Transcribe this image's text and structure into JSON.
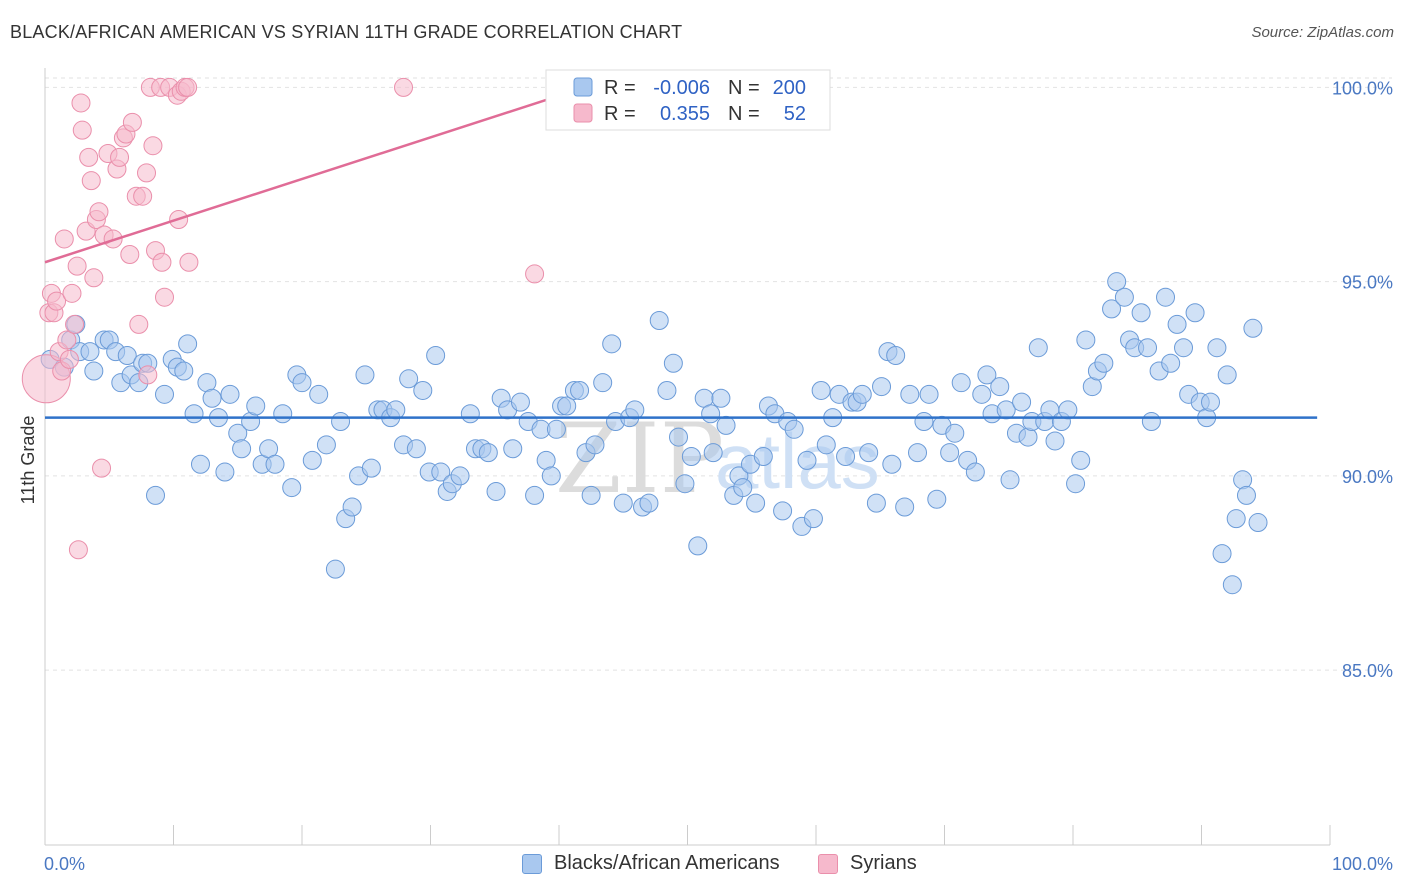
{
  "header": {
    "title": "BLACK/AFRICAN AMERICAN VS SYRIAN 11TH GRADE CORRELATION CHART",
    "source": "Source: ZipAtlas.com"
  },
  "watermark": {
    "zip": "ZIP",
    "atlas": "atlas"
  },
  "legend_box": {
    "rows": [
      {
        "r_label": "R =",
        "r_value": "-0.006",
        "n_label": "N =",
        "n_value": "200"
      },
      {
        "r_label": "R =",
        "r_value": "0.355",
        "n_label": "N =",
        "n_value": "52"
      }
    ]
  },
  "bottom_legend": {
    "items": [
      {
        "label": "Blacks/African Americans"
      },
      {
        "label": "Syrians"
      }
    ]
  },
  "colors": {
    "blue_fill": "#a9c8ef",
    "blue_stroke": "#6b9bd8",
    "blue_line": "#2f72c9",
    "pink_fill": "#f6b9cc",
    "pink_stroke": "#ea8fab",
    "pink_line": "#e06c96",
    "value_blue": "#2f62c4"
  },
  "chart_data": {
    "type": "scatter",
    "title": "BLACK/AFRICAN AMERICAN VS SYRIAN 11TH GRADE CORRELATION CHART",
    "xlabel": "",
    "ylabel": "11th Grade",
    "xlim": [
      0,
      100
    ],
    "ylim": [
      80.5,
      100.5
    ],
    "x_tick_labels": [
      "0.0%",
      "100.0%"
    ],
    "y_ticks": [
      85,
      90,
      95,
      100
    ],
    "y_tick_labels": [
      "85.0%",
      "90.0%",
      "95.0%",
      "100.0%"
    ],
    "grid": true,
    "legend": "top-center",
    "series": [
      {
        "name": "Blacks/African Americans",
        "r": -0.006,
        "n": 200,
        "trend": [
          [
            0,
            91.5
          ],
          [
            99,
            91.5
          ]
        ],
        "points": [
          [
            0.4,
            93.0
          ],
          [
            1.5,
            92.8
          ],
          [
            2.0,
            93.5
          ],
          [
            2.4,
            93.9
          ],
          [
            2.7,
            93.2
          ],
          [
            3.5,
            93.2
          ],
          [
            3.8,
            92.7
          ],
          [
            4.6,
            93.5
          ],
          [
            5.0,
            93.5
          ],
          [
            5.5,
            93.2
          ],
          [
            5.9,
            92.4
          ],
          [
            6.4,
            93.1
          ],
          [
            6.7,
            92.6
          ],
          [
            7.3,
            92.4
          ],
          [
            7.6,
            92.9
          ],
          [
            8.0,
            92.9
          ],
          [
            8.6,
            89.5
          ],
          [
            9.3,
            92.1
          ],
          [
            9.9,
            93.0
          ],
          [
            10.3,
            92.8
          ],
          [
            10.8,
            92.7
          ],
          [
            11.1,
            93.4
          ],
          [
            11.6,
            91.6
          ],
          [
            12.1,
            90.3
          ],
          [
            12.6,
            92.4
          ],
          [
            13.0,
            92.0
          ],
          [
            13.5,
            91.5
          ],
          [
            14.0,
            90.1
          ],
          [
            14.4,
            92.1
          ],
          [
            15.0,
            91.1
          ],
          [
            15.3,
            90.7
          ],
          [
            16.0,
            91.4
          ],
          [
            16.4,
            91.8
          ],
          [
            16.9,
            90.3
          ],
          [
            17.4,
            90.7
          ],
          [
            17.9,
            90.3
          ],
          [
            18.5,
            91.6
          ],
          [
            19.2,
            89.7
          ],
          [
            19.6,
            92.6
          ],
          [
            20.0,
            92.4
          ],
          [
            20.8,
            90.4
          ],
          [
            21.3,
            92.1
          ],
          [
            21.9,
            90.8
          ],
          [
            22.6,
            87.6
          ],
          [
            23.0,
            91.4
          ],
          [
            23.4,
            88.9
          ],
          [
            23.9,
            89.2
          ],
          [
            24.4,
            90.0
          ],
          [
            24.9,
            92.6
          ],
          [
            25.4,
            90.2
          ],
          [
            25.9,
            91.7
          ],
          [
            26.3,
            91.7
          ],
          [
            26.9,
            91.5
          ],
          [
            27.3,
            91.7
          ],
          [
            27.9,
            90.8
          ],
          [
            28.3,
            92.5
          ],
          [
            28.9,
            90.7
          ],
          [
            29.4,
            92.2
          ],
          [
            29.9,
            90.1
          ],
          [
            30.4,
            93.1
          ],
          [
            30.8,
            90.1
          ],
          [
            31.3,
            89.6
          ],
          [
            31.7,
            89.8
          ],
          [
            32.3,
            90.0
          ],
          [
            33.1,
            91.6
          ],
          [
            33.5,
            90.7
          ],
          [
            34.0,
            90.7
          ],
          [
            34.5,
            90.6
          ],
          [
            35.1,
            89.6
          ],
          [
            35.5,
            92.0
          ],
          [
            36.0,
            91.7
          ],
          [
            36.4,
            90.7
          ],
          [
            37.0,
            91.9
          ],
          [
            37.6,
            91.4
          ],
          [
            38.1,
            89.5
          ],
          [
            38.6,
            91.2
          ],
          [
            39.0,
            90.4
          ],
          [
            39.4,
            90.0
          ],
          [
            39.8,
            91.2
          ],
          [
            40.2,
            91.8
          ],
          [
            40.6,
            91.8
          ],
          [
            41.2,
            92.2
          ],
          [
            41.6,
            92.2
          ],
          [
            42.1,
            90.6
          ],
          [
            42.5,
            89.5
          ],
          [
            42.8,
            90.8
          ],
          [
            43.4,
            92.4
          ],
          [
            44.1,
            93.4
          ],
          [
            44.4,
            91.4
          ],
          [
            45.0,
            89.3
          ],
          [
            45.5,
            91.5
          ],
          [
            45.9,
            91.7
          ],
          [
            46.5,
            89.2
          ],
          [
            47.0,
            89.3
          ],
          [
            47.8,
            94.0
          ],
          [
            48.4,
            92.2
          ],
          [
            48.9,
            92.9
          ],
          [
            49.3,
            91.0
          ],
          [
            49.8,
            89.8
          ],
          [
            50.3,
            90.5
          ],
          [
            50.8,
            88.2
          ],
          [
            51.3,
            92.0
          ],
          [
            51.8,
            91.6
          ],
          [
            52.0,
            90.6
          ],
          [
            52.6,
            92.0
          ],
          [
            53.0,
            91.3
          ],
          [
            53.6,
            89.5
          ],
          [
            54.0,
            90.0
          ],
          [
            54.3,
            89.7
          ],
          [
            54.9,
            90.3
          ],
          [
            55.3,
            89.3
          ],
          [
            55.9,
            90.5
          ],
          [
            56.3,
            91.8
          ],
          [
            56.8,
            91.6
          ],
          [
            57.4,
            89.1
          ],
          [
            57.8,
            91.4
          ],
          [
            58.3,
            91.2
          ],
          [
            58.9,
            88.7
          ],
          [
            59.3,
            90.4
          ],
          [
            59.8,
            88.9
          ],
          [
            60.4,
            92.2
          ],
          [
            60.8,
            90.8
          ],
          [
            61.3,
            91.5
          ],
          [
            61.8,
            92.1
          ],
          [
            62.3,
            90.5
          ],
          [
            62.8,
            91.9
          ],
          [
            63.2,
            91.9
          ],
          [
            63.6,
            92.1
          ],
          [
            64.1,
            90.6
          ],
          [
            64.7,
            89.3
          ],
          [
            65.1,
            92.3
          ],
          [
            65.6,
            93.2
          ],
          [
            65.9,
            90.3
          ],
          [
            66.2,
            93.1
          ],
          [
            66.9,
            89.2
          ],
          [
            67.3,
            92.1
          ],
          [
            67.9,
            90.6
          ],
          [
            68.4,
            91.4
          ],
          [
            68.8,
            92.1
          ],
          [
            69.4,
            89.4
          ],
          [
            69.8,
            91.3
          ],
          [
            70.4,
            90.6
          ],
          [
            70.8,
            91.1
          ],
          [
            71.3,
            92.4
          ],
          [
            71.8,
            90.4
          ],
          [
            72.4,
            90.1
          ],
          [
            72.9,
            92.1
          ],
          [
            73.3,
            92.6
          ],
          [
            73.7,
            91.6
          ],
          [
            74.3,
            92.3
          ],
          [
            74.8,
            91.7
          ],
          [
            75.1,
            89.9
          ],
          [
            75.6,
            91.1
          ],
          [
            76.0,
            91.9
          ],
          [
            76.5,
            91.0
          ],
          [
            76.8,
            91.4
          ],
          [
            77.3,
            93.3
          ],
          [
            77.8,
            91.4
          ],
          [
            78.2,
            91.7
          ],
          [
            78.6,
            90.9
          ],
          [
            79.1,
            91.4
          ],
          [
            79.6,
            91.7
          ],
          [
            80.2,
            89.8
          ],
          [
            80.6,
            90.4
          ],
          [
            81.0,
            93.5
          ],
          [
            81.5,
            92.3
          ],
          [
            81.9,
            92.7
          ],
          [
            82.4,
            92.9
          ],
          [
            83.0,
            94.3
          ],
          [
            83.4,
            95.0
          ],
          [
            84.0,
            94.6
          ],
          [
            84.4,
            93.5
          ],
          [
            84.8,
            93.3
          ],
          [
            85.3,
            94.2
          ],
          [
            85.8,
            93.3
          ],
          [
            86.1,
            91.4
          ],
          [
            86.7,
            92.7
          ],
          [
            87.2,
            94.6
          ],
          [
            87.6,
            92.9
          ],
          [
            88.1,
            93.9
          ],
          [
            88.6,
            93.3
          ],
          [
            89.0,
            92.1
          ],
          [
            89.5,
            94.2
          ],
          [
            89.9,
            91.9
          ],
          [
            90.4,
            91.5
          ],
          [
            90.7,
            91.9
          ],
          [
            91.2,
            93.3
          ],
          [
            91.6,
            88.0
          ],
          [
            92.0,
            92.6
          ],
          [
            92.4,
            87.2
          ],
          [
            92.7,
            88.9
          ],
          [
            93.2,
            89.9
          ],
          [
            93.5,
            89.5
          ],
          [
            94.0,
            93.8
          ],
          [
            94.4,
            88.8
          ]
        ]
      },
      {
        "name": "Syrians",
        "r": 0.355,
        "n": 52,
        "trend": [
          [
            0,
            95.5
          ],
          [
            42,
            100.0
          ]
        ],
        "points": [
          [
            0.1,
            92.5,
            "big"
          ],
          [
            0.3,
            94.2
          ],
          [
            0.5,
            94.7
          ],
          [
            0.7,
            94.2
          ],
          [
            0.9,
            94.5
          ],
          [
            1.1,
            93.2
          ],
          [
            1.3,
            92.7
          ],
          [
            1.5,
            96.1
          ],
          [
            1.7,
            93.5
          ],
          [
            1.9,
            93.0
          ],
          [
            2.1,
            94.7
          ],
          [
            2.3,
            93.9
          ],
          [
            2.5,
            95.4
          ],
          [
            2.8,
            99.6
          ],
          [
            2.9,
            98.9
          ],
          [
            3.2,
            96.3
          ],
          [
            3.4,
            98.2
          ],
          [
            3.6,
            97.6
          ],
          [
            3.8,
            95.1
          ],
          [
            4.0,
            96.6
          ],
          [
            4.2,
            96.8
          ],
          [
            4.4,
            90.2
          ],
          [
            4.6,
            96.2
          ],
          [
            4.9,
            98.3
          ],
          [
            5.3,
            96.1
          ],
          [
            5.6,
            97.9
          ],
          [
            5.8,
            98.2
          ],
          [
            6.1,
            98.7
          ],
          [
            6.3,
            98.8
          ],
          [
            6.6,
            95.7
          ],
          [
            6.8,
            99.1
          ],
          [
            7.1,
            97.2
          ],
          [
            7.3,
            93.9
          ],
          [
            7.6,
            97.2
          ],
          [
            7.9,
            97.8
          ],
          [
            8.0,
            92.6
          ],
          [
            8.2,
            100.0
          ],
          [
            8.4,
            98.5
          ],
          [
            8.6,
            95.8
          ],
          [
            9.0,
            100.0
          ],
          [
            9.1,
            95.5
          ],
          [
            9.3,
            94.6
          ],
          [
            9.7,
            100.0
          ],
          [
            10.3,
            99.8
          ],
          [
            10.4,
            96.6
          ],
          [
            10.6,
            99.9
          ],
          [
            10.9,
            100.0
          ],
          [
            11.1,
            100.0
          ],
          [
            11.2,
            95.5
          ],
          [
            27.9,
            100.0
          ],
          [
            38.1,
            95.2
          ],
          [
            2.6,
            88.1
          ]
        ]
      }
    ]
  }
}
